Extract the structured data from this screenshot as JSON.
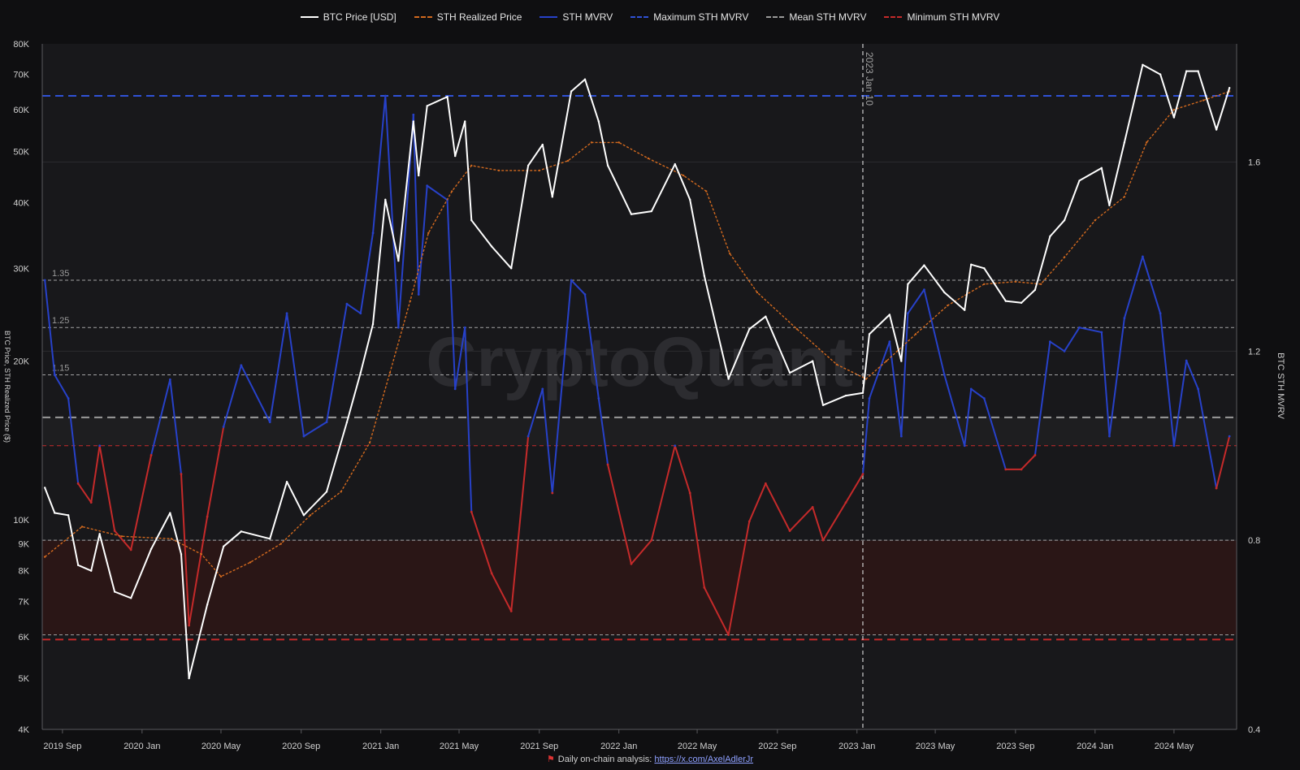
{
  "legend": [
    {
      "label": "BTC Price [USD]",
      "color": "#ffffff",
      "style": "solid"
    },
    {
      "label": "STH Realized Price",
      "color": "#d2691e",
      "style": "dashed"
    },
    {
      "label": "STH MVRV",
      "color": "#2741c9",
      "style": "solid"
    },
    {
      "label": "Maximum STH MVRV",
      "color": "#2f51d6",
      "style": "dashed"
    },
    {
      "label": "Mean STH MVRV",
      "color": "#9a9a9a",
      "style": "dashed"
    },
    {
      "label": "Minimum STH MVRV",
      "color": "#c52a2a",
      "style": "dashed"
    }
  ],
  "watermark": "CryptoQuant",
  "footer": {
    "text": "Daily on-chain analysis: ",
    "link": "https://x.com/AxelAdlerJr"
  },
  "chart_data": {
    "type": "line",
    "y_left_label": "BTC Price, STH Realized Price ($)",
    "y_right_label": "BTC STH MVRV",
    "y_left_scale": "log",
    "y_left_range": [
      4000,
      80000
    ],
    "y_left_ticks": [
      {
        "v": 4000,
        "t": "4K"
      },
      {
        "v": 5000,
        "t": "5K"
      },
      {
        "v": 6000,
        "t": "6K"
      },
      {
        "v": 7000,
        "t": "7K"
      },
      {
        "v": 8000,
        "t": "8K"
      },
      {
        "v": 9000,
        "t": "9K"
      },
      {
        "v": 10000,
        "t": "10K"
      },
      {
        "v": 20000,
        "t": "20K"
      },
      {
        "v": 30000,
        "t": "30K"
      },
      {
        "v": 40000,
        "t": "40K"
      },
      {
        "v": 50000,
        "t": "50K"
      },
      {
        "v": 60000,
        "t": "60K"
      },
      {
        "v": 70000,
        "t": "70K"
      },
      {
        "v": 80000,
        "t": "80K"
      }
    ],
    "y_right_range": [
      0.4,
      1.85
    ],
    "y_right_ticks": [
      {
        "v": 0.4,
        "t": "0.4"
      },
      {
        "v": 0.8,
        "t": "0.8"
      },
      {
        "v": 1.2,
        "t": "1.2"
      },
      {
        "v": 1.6,
        "t": "1.6"
      }
    ],
    "x_range": [
      "2019-08-01",
      "2024-08-05"
    ],
    "x_ticks": [
      {
        "d": "2019-09-01",
        "t": "2019 Sep"
      },
      {
        "d": "2020-01-01",
        "t": "2020 Jan"
      },
      {
        "d": "2020-05-01",
        "t": "2020 May"
      },
      {
        "d": "2020-09-01",
        "t": "2020 Sep"
      },
      {
        "d": "2021-01-01",
        "t": "2021 Jan"
      },
      {
        "d": "2021-05-01",
        "t": "2021 May"
      },
      {
        "d": "2021-09-01",
        "t": "2021 Sep"
      },
      {
        "d": "2022-01-01",
        "t": "2022 Jan"
      },
      {
        "d": "2022-05-01",
        "t": "2022 May"
      },
      {
        "d": "2022-09-01",
        "t": "2022 Sep"
      },
      {
        "d": "2023-01-01",
        "t": "2023 Jan"
      },
      {
        "d": "2023-05-01",
        "t": "2023 May"
      },
      {
        "d": "2023-09-01",
        "t": "2023 Sep"
      },
      {
        "d": "2024-01-01",
        "t": "2024 Jan"
      },
      {
        "d": "2024-05-01",
        "t": "2024 May"
      }
    ],
    "reference_lines": [
      {
        "value": 1.35,
        "label": "1.35",
        "color": "#bbbbbb"
      },
      {
        "value": 1.25,
        "label": "1.25",
        "color": "#bbbbbb"
      },
      {
        "value": 1.15,
        "label": "1.15",
        "color": "#bbbbbb"
      },
      {
        "value": 0.8,
        "label": "",
        "color": "#bbbbbb"
      },
      {
        "value": 0.6,
        "label": "",
        "color": "#bbbbbb"
      }
    ],
    "max_sth_mvrv": 1.74,
    "mean_sth_mvrv": 1.06,
    "min_sth_mvrv": 0.59,
    "shaded_bands": [
      {
        "from": 1.0,
        "to": 1.06,
        "color": "#1e1e20"
      },
      {
        "from": 0.6,
        "to": 0.8,
        "color": "#2a1616"
      }
    ],
    "vertical_marker": {
      "date": "2023-01-10",
      "label": "2023 Jan 10"
    },
    "series": [
      {
        "name": "BTC Price [USD]",
        "axis": "left",
        "color": "#ffffff",
        "points": [
          [
            "2019-08-05",
            11500
          ],
          [
            "2019-08-20",
            10300
          ],
          [
            "2019-09-10",
            10200
          ],
          [
            "2019-09-25",
            8200
          ],
          [
            "2019-10-15",
            8000
          ],
          [
            "2019-10-28",
            9400
          ],
          [
            "2019-11-20",
            7300
          ],
          [
            "2019-12-15",
            7100
          ],
          [
            "2020-01-15",
            8800
          ],
          [
            "2020-02-13",
            10300
          ],
          [
            "2020-03-01",
            8600
          ],
          [
            "2020-03-13",
            5000
          ],
          [
            "2020-04-10",
            6900
          ],
          [
            "2020-05-05",
            8900
          ],
          [
            "2020-06-01",
            9500
          ],
          [
            "2020-07-15",
            9200
          ],
          [
            "2020-08-10",
            11800
          ],
          [
            "2020-09-05",
            10200
          ],
          [
            "2020-10-10",
            11300
          ],
          [
            "2020-11-10",
            15300
          ],
          [
            "2020-12-01",
            19000
          ],
          [
            "2020-12-20",
            23500
          ],
          [
            "2021-01-08",
            40500
          ],
          [
            "2021-01-28",
            31000
          ],
          [
            "2021-02-20",
            57000
          ],
          [
            "2021-02-28",
            45000
          ],
          [
            "2021-03-13",
            61000
          ],
          [
            "2021-04-13",
            63500
          ],
          [
            "2021-04-25",
            49000
          ],
          [
            "2021-05-10",
            57000
          ],
          [
            "2021-05-20",
            37000
          ],
          [
            "2021-06-20",
            33000
          ],
          [
            "2021-07-20",
            30000
          ],
          [
            "2021-08-15",
            47000
          ],
          [
            "2021-09-06",
            51500
          ],
          [
            "2021-09-21",
            41000
          ],
          [
            "2021-10-20",
            65000
          ],
          [
            "2021-11-10",
            68500
          ],
          [
            "2021-12-01",
            57000
          ],
          [
            "2021-12-15",
            47000
          ],
          [
            "2022-01-20",
            38000
          ],
          [
            "2022-02-20",
            38500
          ],
          [
            "2022-03-28",
            47300
          ],
          [
            "2022-04-20",
            40500
          ],
          [
            "2022-05-12",
            29000
          ],
          [
            "2022-06-18",
            18500
          ],
          [
            "2022-07-20",
            23000
          ],
          [
            "2022-08-14",
            24300
          ],
          [
            "2022-09-20",
            19000
          ],
          [
            "2022-10-25",
            20000
          ],
          [
            "2022-11-10",
            16500
          ],
          [
            "2022-12-15",
            17200
          ],
          [
            "2023-01-10",
            17400
          ],
          [
            "2023-01-20",
            22500
          ],
          [
            "2023-02-20",
            24500
          ],
          [
            "2023-03-10",
            20000
          ],
          [
            "2023-03-20",
            28000
          ],
          [
            "2023-04-14",
            30400
          ],
          [
            "2023-05-15",
            27000
          ],
          [
            "2023-06-15",
            25000
          ],
          [
            "2023-06-25",
            30500
          ],
          [
            "2023-07-15",
            30000
          ],
          [
            "2023-08-17",
            26000
          ],
          [
            "2023-09-10",
            25800
          ],
          [
            "2023-10-01",
            27300
          ],
          [
            "2023-10-24",
            34500
          ],
          [
            "2023-11-15",
            37000
          ],
          [
            "2023-12-08",
            44000
          ],
          [
            "2024-01-11",
            46500
          ],
          [
            "2024-01-23",
            39500
          ],
          [
            "2024-02-15",
            52000
          ],
          [
            "2024-03-14",
            73000
          ],
          [
            "2024-04-10",
            70000
          ],
          [
            "2024-05-01",
            58000
          ],
          [
            "2024-05-20",
            71000
          ],
          [
            "2024-06-07",
            71000
          ],
          [
            "2024-07-05",
            55000
          ],
          [
            "2024-07-25",
            66000
          ]
        ]
      },
      {
        "name": "STH Realized Price",
        "axis": "left",
        "color": "#d2691e",
        "dashed": true,
        "points": [
          [
            "2019-08-05",
            8500
          ],
          [
            "2019-10-01",
            9700
          ],
          [
            "2019-12-01",
            9300
          ],
          [
            "2020-02-15",
            9200
          ],
          [
            "2020-04-01",
            8600
          ],
          [
            "2020-05-01",
            7800
          ],
          [
            "2020-06-15",
            8300
          ],
          [
            "2020-08-01",
            9000
          ],
          [
            "2020-09-15",
            10200
          ],
          [
            "2020-11-01",
            11300
          ],
          [
            "2020-12-15",
            14000
          ],
          [
            "2021-01-15",
            19000
          ],
          [
            "2021-02-15",
            26000
          ],
          [
            "2021-03-15",
            35000
          ],
          [
            "2021-04-20",
            42000
          ],
          [
            "2021-05-20",
            47000
          ],
          [
            "2021-07-01",
            46000
          ],
          [
            "2021-09-01",
            46000
          ],
          [
            "2021-10-15",
            48000
          ],
          [
            "2021-11-20",
            52000
          ],
          [
            "2022-01-01",
            52000
          ],
          [
            "2022-02-15",
            48500
          ],
          [
            "2022-04-10",
            45000
          ],
          [
            "2022-05-15",
            42000
          ],
          [
            "2022-06-20",
            32000
          ],
          [
            "2022-08-01",
            27000
          ],
          [
            "2022-10-01",
            23000
          ],
          [
            "2022-12-01",
            19700
          ],
          [
            "2023-01-15",
            18500
          ],
          [
            "2023-02-15",
            20000
          ],
          [
            "2023-04-01",
            22500
          ],
          [
            "2023-05-20",
            25500
          ],
          [
            "2023-07-15",
            28000
          ],
          [
            "2023-09-01",
            28300
          ],
          [
            "2023-10-10",
            28000
          ],
          [
            "2023-11-15",
            31500
          ],
          [
            "2024-01-01",
            37000
          ],
          [
            "2024-02-15",
            41000
          ],
          [
            "2024-03-20",
            52000
          ],
          [
            "2024-05-01",
            60000
          ],
          [
            "2024-06-15",
            62500
          ],
          [
            "2024-07-25",
            65000
          ]
        ]
      },
      {
        "name": "STH MVRV",
        "axis": "right",
        "color": "#2741c9",
        "points": [
          [
            "2019-08-05",
            1.35
          ],
          [
            "2019-08-20",
            1.15
          ],
          [
            "2019-09-10",
            1.1
          ],
          [
            "2019-09-25",
            0.92
          ],
          [
            "2019-10-15",
            0.88
          ],
          [
            "2019-10-28",
            1.0
          ],
          [
            "2019-11-20",
            0.82
          ],
          [
            "2019-12-15",
            0.78
          ],
          [
            "2020-01-15",
            0.98
          ],
          [
            "2020-02-13",
            1.14
          ],
          [
            "2020-03-01",
            0.94
          ],
          [
            "2020-03-13",
            0.62
          ],
          [
            "2020-04-10",
            0.85
          ],
          [
            "2020-05-05",
            1.04
          ],
          [
            "2020-06-01",
            1.17
          ],
          [
            "2020-07-15",
            1.05
          ],
          [
            "2020-08-10",
            1.28
          ],
          [
            "2020-09-05",
            1.02
          ],
          [
            "2020-10-10",
            1.05
          ],
          [
            "2020-11-10",
            1.3
          ],
          [
            "2020-12-01",
            1.28
          ],
          [
            "2020-12-20",
            1.45
          ],
          [
            "2021-01-08",
            1.74
          ],
          [
            "2021-01-28",
            1.25
          ],
          [
            "2021-02-20",
            1.7
          ],
          [
            "2021-02-28",
            1.32
          ],
          [
            "2021-03-13",
            1.55
          ],
          [
            "2021-04-13",
            1.52
          ],
          [
            "2021-04-25",
            1.12
          ],
          [
            "2021-05-10",
            1.25
          ],
          [
            "2021-05-20",
            0.86
          ],
          [
            "2021-06-20",
            0.73
          ],
          [
            "2021-07-20",
            0.65
          ],
          [
            "2021-08-15",
            1.02
          ],
          [
            "2021-09-06",
            1.12
          ],
          [
            "2021-09-21",
            0.9
          ],
          [
            "2021-10-20",
            1.35
          ],
          [
            "2021-11-10",
            1.32
          ],
          [
            "2021-12-01",
            1.1
          ],
          [
            "2021-12-15",
            0.96
          ],
          [
            "2022-01-20",
            0.75
          ],
          [
            "2022-02-20",
            0.8
          ],
          [
            "2022-03-28",
            1.0
          ],
          [
            "2022-04-20",
            0.9
          ],
          [
            "2022-05-12",
            0.7
          ],
          [
            "2022-06-18",
            0.6
          ],
          [
            "2022-07-20",
            0.84
          ],
          [
            "2022-08-14",
            0.92
          ],
          [
            "2022-09-20",
            0.82
          ],
          [
            "2022-10-25",
            0.87
          ],
          [
            "2022-11-10",
            0.8
          ],
          [
            "2022-12-15",
            0.88
          ],
          [
            "2023-01-10",
            0.94
          ],
          [
            "2023-01-20",
            1.1
          ],
          [
            "2023-02-20",
            1.22
          ],
          [
            "2023-03-10",
            1.02
          ],
          [
            "2023-03-20",
            1.28
          ],
          [
            "2023-04-14",
            1.33
          ],
          [
            "2023-05-15",
            1.15
          ],
          [
            "2023-06-15",
            1.0
          ],
          [
            "2023-06-25",
            1.12
          ],
          [
            "2023-07-15",
            1.1
          ],
          [
            "2023-08-17",
            0.95
          ],
          [
            "2023-09-10",
            0.95
          ],
          [
            "2023-10-01",
            0.98
          ],
          [
            "2023-10-24",
            1.22
          ],
          [
            "2023-11-15",
            1.2
          ],
          [
            "2023-12-08",
            1.25
          ],
          [
            "2024-01-11",
            1.24
          ],
          [
            "2024-01-23",
            1.02
          ],
          [
            "2024-02-15",
            1.27
          ],
          [
            "2024-03-14",
            1.4
          ],
          [
            "2024-04-10",
            1.28
          ],
          [
            "2024-05-01",
            1.0
          ],
          [
            "2024-05-20",
            1.18
          ],
          [
            "2024-06-07",
            1.12
          ],
          [
            "2024-07-05",
            0.91
          ],
          [
            "2024-07-25",
            1.02
          ]
        ]
      }
    ]
  }
}
